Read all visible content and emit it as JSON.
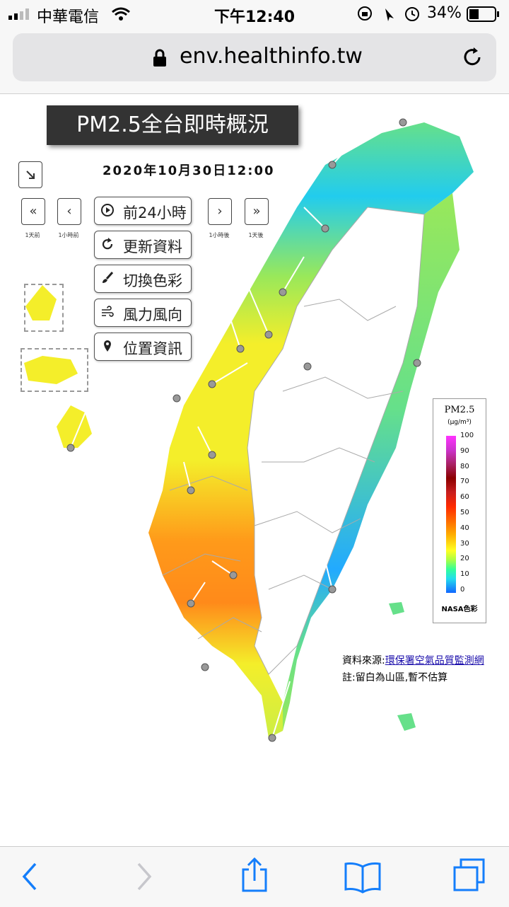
{
  "status_bar": {
    "carrier": "中華電信",
    "time": "下午12:40",
    "battery": "34%"
  },
  "browser": {
    "url": "env.healthinfo.tw"
  },
  "map_page": {
    "title": "PM2.5全台即時概況",
    "datetime": "2020年10月30日12:00",
    "nav": {
      "prev_day": "«",
      "prev_day_label": "1天前",
      "prev_hour": "‹",
      "prev_hour_label": "1小時前",
      "next_hour": "›",
      "next_hour_label": "1小時後",
      "next_day": "»",
      "next_day_label": "1天後"
    },
    "buttons": {
      "play_24h": "前24小時",
      "refresh": "更新資料",
      "color_switch": "切換色彩",
      "wind": "風力風向",
      "location": "位置資訊"
    },
    "legend": {
      "title": "PM2.5",
      "unit": "(μg/m³)",
      "ticks": [
        "100",
        "90",
        "80",
        "70",
        "60",
        "50",
        "40",
        "30",
        "20",
        "10",
        "0"
      ],
      "footer": "NASA色彩"
    },
    "source_label": "資料來源:",
    "source_link": "環保署空氣品質監測網",
    "note": "註:留白為山區,暫不估算"
  },
  "colors": {
    "cyan": "#22ccee",
    "green": "#66e08a",
    "yellow": "#f4ee2a",
    "orange": "#ff9a1a",
    "red_orange": "#ff6a1a"
  }
}
